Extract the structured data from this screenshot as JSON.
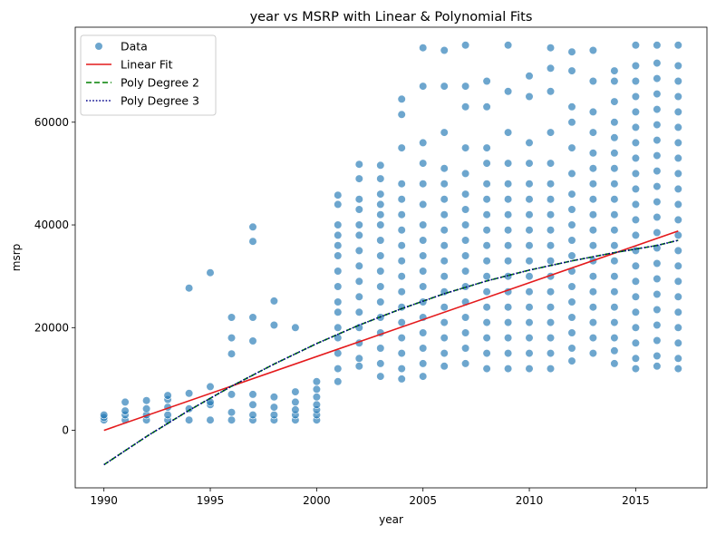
{
  "chart_data": {
    "type": "scatter",
    "title": "year vs MSRP with Linear & Polynomial Fits",
    "xlabel": "year",
    "ylabel": "msrp",
    "xlim": [
      1988.65,
      2018.35
    ],
    "ylim": [
      -11200,
      78500
    ],
    "xticks": [
      1990,
      1995,
      2000,
      2005,
      2010,
      2015
    ],
    "yticks": [
      0,
      20000,
      40000,
      60000
    ],
    "grid": false,
    "legend_position": "top-left",
    "colors": {
      "data": "#1f77b4",
      "linear": "#e41a1c",
      "poly2": "#008000",
      "poly3": "#00008b"
    },
    "series": [
      {
        "name": "Data",
        "kind": "scatter",
        "x": [
          1990,
          1990,
          1990,
          1991,
          1991,
          1991,
          1991,
          1992,
          1992,
          1992,
          1992,
          1993,
          1993,
          1993,
          1993,
          1993,
          1994,
          1994,
          1994,
          1994,
          1995,
          1995,
          1995,
          1995,
          1995,
          1996,
          1996,
          1996,
          1996,
          1996,
          1996,
          1997,
          1997,
          1997,
          1997,
          1997,
          1997,
          1997,
          1997,
          1998,
          1998,
          1998,
          1998,
          1998,
          1998,
          1999,
          1999,
          1999,
          1999,
          1999,
          1999,
          2000,
          2000,
          2000,
          2000,
          2000,
          2000,
          2000,
          2001,
          2001,
          2001,
          2001,
          2001,
          2001,
          2001,
          2001,
          2001,
          2001,
          2001,
          2001,
          2001,
          2001,
          2001,
          2002,
          2002,
          2002,
          2002,
          2002,
          2002,
          2002,
          2002,
          2002,
          2002,
          2002,
          2002,
          2002,
          2002,
          2002,
          2003,
          2003,
          2003,
          2003,
          2003,
          2003,
          2003,
          2003,
          2003,
          2003,
          2003,
          2003,
          2003,
          2003,
          2003,
          2003,
          2004,
          2004,
          2004,
          2004,
          2004,
          2004,
          2004,
          2004,
          2004,
          2004,
          2004,
          2004,
          2004,
          2004,
          2004,
          2004,
          2004,
          2005,
          2005,
          2005,
          2005,
          2005,
          2005,
          2005,
          2005,
          2005,
          2005,
          2005,
          2005,
          2005,
          2005,
          2005,
          2005,
          2005,
          2006,
          2006,
          2006,
          2006,
          2006,
          2006,
          2006,
          2006,
          2006,
          2006,
          2006,
          2006,
          2006,
          2006,
          2006,
          2006,
          2006,
          2007,
          2007,
          2007,
          2007,
          2007,
          2007,
          2007,
          2007,
          2007,
          2007,
          2007,
          2007,
          2007,
          2007,
          2007,
          2007,
          2007,
          2008,
          2008,
          2008,
          2008,
          2008,
          2008,
          2008,
          2008,
          2008,
          2008,
          2008,
          2008,
          2008,
          2008,
          2008,
          2008,
          2008,
          2009,
          2009,
          2009,
          2009,
          2009,
          2009,
          2009,
          2009,
          2009,
          2009,
          2009,
          2009,
          2009,
          2009,
          2009,
          2009,
          2009,
          2010,
          2010,
          2010,
          2010,
          2010,
          2010,
          2010,
          2010,
          2010,
          2010,
          2010,
          2010,
          2010,
          2010,
          2010,
          2010,
          2010,
          2011,
          2011,
          2011,
          2011,
          2011,
          2011,
          2011,
          2011,
          2011,
          2011,
          2011,
          2011,
          2011,
          2011,
          2011,
          2011,
          2011,
          2011,
          2012,
          2012,
          2012,
          2012,
          2012,
          2012,
          2012,
          2012,
          2012,
          2012,
          2012,
          2012,
          2012,
          2012,
          2012,
          2012,
          2012,
          2012,
          2013,
          2013,
          2013,
          2013,
          2013,
          2013,
          2013,
          2013,
          2013,
          2013,
          2013,
          2013,
          2013,
          2013,
          2013,
          2013,
          2013,
          2013,
          2014,
          2014,
          2014,
          2014,
          2014,
          2014,
          2014,
          2014,
          2014,
          2014,
          2014,
          2014,
          2014,
          2014,
          2014,
          2014,
          2014,
          2014,
          2014,
          2014,
          2015,
          2015,
          2015,
          2015,
          2015,
          2015,
          2015,
          2015,
          2015,
          2015,
          2015,
          2015,
          2015,
          2015,
          2015,
          2015,
          2015,
          2015,
          2015,
          2015,
          2015,
          2015,
          2016,
          2016,
          2016,
          2016,
          2016,
          2016,
          2016,
          2016,
          2016,
          2016,
          2016,
          2016,
          2016,
          2016,
          2016,
          2016,
          2016,
          2016,
          2016,
          2016,
          2016,
          2016,
          2017,
          2017,
          2017,
          2017,
          2017,
          2017,
          2017,
          2017,
          2017,
          2017,
          2017,
          2017,
          2017,
          2017,
          2017,
          2017,
          2017,
          2017,
          2017,
          2017,
          2017,
          2017
        ],
        "y": [
          2000,
          2500,
          3000,
          2000,
          3000,
          3800,
          5500,
          2000,
          3000,
          4200,
          5800,
          2000,
          3000,
          4500,
          6000,
          6800,
          2000,
          4200,
          7200,
          27700,
          2000,
          5000,
          5500,
          8500,
          30700,
          2000,
          3500,
          7000,
          14900,
          18000,
          22000,
          2000,
          3000,
          5000,
          7000,
          17400,
          22000,
          36800,
          39600,
          2000,
          3000,
          4500,
          6500,
          20500,
          25200,
          2000,
          3000,
          4000,
          5500,
          7500,
          20000,
          2000,
          3000,
          4000,
          5000,
          6500,
          8000,
          9500,
          9500,
          12000,
          15000,
          18000,
          20000,
          23000,
          25000,
          28000,
          31000,
          34000,
          36000,
          38000,
          40000,
          44000,
          45800,
          12500,
          14000,
          17000,
          20000,
          23000,
          26000,
          29000,
          32000,
          35000,
          38000,
          40000,
          43000,
          45000,
          49000,
          51800,
          10500,
          13000,
          16000,
          19000,
          22000,
          25000,
          28000,
          31000,
          34000,
          37000,
          40000,
          42000,
          44000,
          46000,
          49000,
          51600,
          10000,
          12000,
          15000,
          18000,
          21000,
          24000,
          27000,
          30000,
          33000,
          36000,
          39000,
          42000,
          45000,
          48000,
          55000,
          61500,
          64500,
          10500,
          13000,
          16000,
          19000,
          22000,
          25000,
          28000,
          31000,
          34000,
          37000,
          40000,
          44000,
          48000,
          52000,
          56000,
          67000,
          74500,
          12500,
          15000,
          18000,
          21000,
          24000,
          27000,
          30000,
          33000,
          36000,
          39000,
          42000,
          45000,
          48000,
          51000,
          58000,
          67000,
          74000,
          13000,
          16000,
          19000,
          22000,
          25000,
          28000,
          31000,
          34000,
          37000,
          40000,
          43000,
          46000,
          50000,
          55000,
          63000,
          67000,
          75000,
          12000,
          15000,
          18000,
          21000,
          24000,
          27000,
          30000,
          33000,
          36000,
          39000,
          42000,
          45000,
          48000,
          52000,
          55000,
          63000,
          68000,
          12000,
          15000,
          18000,
          21000,
          24000,
          27000,
          30000,
          33000,
          36000,
          39000,
          42000,
          45000,
          48000,
          52000,
          58000,
          66000,
          75000,
          12000,
          15000,
          18000,
          21000,
          24000,
          27000,
          30000,
          33000,
          36000,
          39000,
          42000,
          45000,
          48000,
          52000,
          56000,
          65000,
          69000,
          12000,
          15000,
          18000,
          21000,
          24000,
          27000,
          30000,
          33000,
          36000,
          39000,
          42000,
          45000,
          48000,
          52000,
          58000,
          66000,
          70500,
          74500,
          13500,
          16000,
          19000,
          22000,
          25000,
          28000,
          31000,
          34000,
          37000,
          40000,
          43000,
          46000,
          50000,
          55000,
          60000,
          63000,
          70000,
          73700,
          15000,
          18000,
          21000,
          24000,
          27000,
          30000,
          33000,
          36000,
          39000,
          42000,
          45000,
          48000,
          51000,
          54000,
          58000,
          62000,
          68000,
          74000,
          13000,
          15500,
          18000,
          21000,
          24000,
          27000,
          30000,
          33000,
          36000,
          39000,
          42000,
          45000,
          48000,
          51000,
          54000,
          57000,
          60000,
          64000,
          68000,
          70000,
          12000,
          14000,
          17000,
          20000,
          23000,
          26000,
          29000,
          32000,
          35000,
          38000,
          41000,
          44000,
          47000,
          50000,
          53000,
          56000,
          59000,
          62000,
          65000,
          68000,
          71000,
          75000,
          12500,
          14500,
          17500,
          20500,
          23500,
          26500,
          29500,
          32500,
          35500,
          38500,
          41500,
          44500,
          47500,
          50500,
          53500,
          56500,
          59500,
          62500,
          65500,
          68500,
          71500,
          75000,
          12000,
          14000,
          17000,
          20000,
          23000,
          26000,
          29000,
          32000,
          35000,
          38000,
          41000,
          44000,
          47000,
          50000,
          53000,
          56000,
          59000,
          62000,
          65000,
          68000,
          71000,
          75000
        ]
      },
      {
        "name": "Linear Fit",
        "kind": "line",
        "x": [
          1990,
          2017
        ],
        "y": [
          0,
          38800
        ]
      },
      {
        "name": "Poly Degree 2",
        "kind": "line",
        "x": [
          1990,
          1992,
          1994,
          1996,
          1998,
          2000,
          2002,
          2004,
          2006,
          2008,
          2010,
          2012,
          2014,
          2016,
          2017
        ],
        "y": [
          -6700,
          -1200,
          3900,
          8600,
          12900,
          16900,
          20500,
          23700,
          26600,
          29100,
          31200,
          33000,
          34600,
          36000,
          37000
        ]
      },
      {
        "name": "Poly Degree 3",
        "kind": "line",
        "x": [
          1990,
          1992,
          1994,
          1996,
          1998,
          2000,
          2002,
          2004,
          2006,
          2008,
          2010,
          2012,
          2014,
          2016,
          2017
        ],
        "y": [
          -6700,
          -1200,
          3900,
          8600,
          12900,
          16900,
          20500,
          23700,
          26600,
          29100,
          31200,
          33000,
          34600,
          36000,
          37000
        ]
      }
    ]
  }
}
